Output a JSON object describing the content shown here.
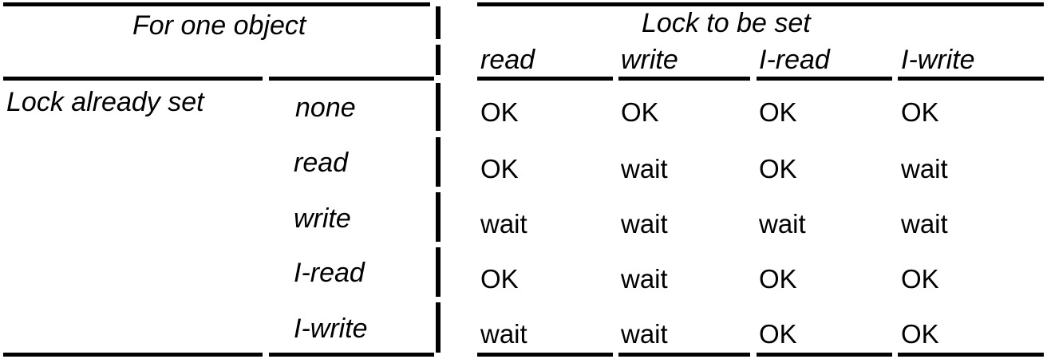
{
  "table": {
    "corner_title": "For one object",
    "column_group_title": "Lock to be set",
    "row_group_title": "Lock already set",
    "columns": [
      "read",
      "write",
      "I-read",
      "I-write"
    ],
    "rows": [
      {
        "label": "none",
        "cells": [
          "OK",
          "OK",
          "OK",
          "OK"
        ]
      },
      {
        "label": "read",
        "cells": [
          "OK",
          "wait",
          "OK",
          "wait"
        ]
      },
      {
        "label": "write",
        "cells": [
          "wait",
          "wait",
          "wait",
          "wait"
        ]
      },
      {
        "label": "I-read",
        "cells": [
          "OK",
          "wait",
          "OK",
          "OK"
        ]
      },
      {
        "label": "I-write",
        "cells": [
          "wait",
          "wait",
          "OK",
          "OK"
        ]
      }
    ]
  }
}
